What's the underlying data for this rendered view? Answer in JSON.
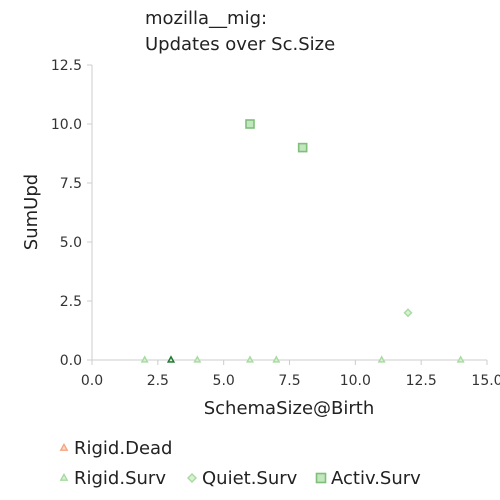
{
  "chart_data": {
    "type": "scatter",
    "title_lines": [
      "mozilla__mig:",
      "Updates over Sc.Size"
    ],
    "xlabel": "SchemaSize@Birth",
    "ylabel": "SumUpd",
    "xlim": [
      0.0,
      15.0
    ],
    "ylim": [
      0.0,
      12.5
    ],
    "x_ticks": [
      "0.0",
      "2.5",
      "5.0",
      "7.5",
      "10.0",
      "12.5",
      "15.0"
    ],
    "y_ticks": [
      "0.0",
      "2.5",
      "5.0",
      "7.5",
      "10.0",
      "12.5"
    ],
    "grid": false,
    "legend_placement": "bottom",
    "series": [
      {
        "name": "Rigid.Dead",
        "marker": "triangle",
        "stroke": "#f4a582",
        "fill": "#fddbc7",
        "points": [
          [
            3,
            0
          ]
        ]
      },
      {
        "name": "Rigid.Surv",
        "marker": "triangle",
        "stroke": "#a6dba0",
        "fill": "#d9f0d3",
        "points": [
          [
            2,
            0
          ],
          [
            3,
            0
          ],
          [
            4,
            0
          ],
          [
            6,
            0
          ],
          [
            7,
            0
          ],
          [
            11,
            0
          ],
          [
            14,
            0
          ]
        ]
      },
      {
        "name": "Quiet.Surv",
        "marker": "diamond",
        "stroke": "#a6dba0",
        "fill": "#d9f0d3",
        "points": [
          [
            12,
            2
          ]
        ]
      },
      {
        "name": "Activ.Surv",
        "marker": "square",
        "stroke": "#7fbf7b",
        "fill": "#c2e6bd",
        "points": [
          [
            6,
            10
          ],
          [
            8,
            9
          ]
        ]
      }
    ],
    "highlight_point": {
      "x": 3,
      "y": 0,
      "stroke": "#1b7837"
    }
  }
}
